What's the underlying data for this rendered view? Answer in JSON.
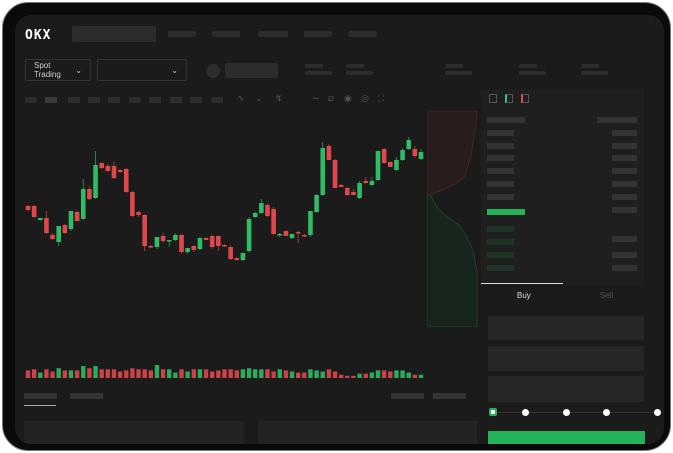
{
  "header": {
    "logo": "OKX"
  },
  "toolbar": {
    "market_select": "Spot Trading",
    "pair_select": ""
  },
  "order_form": {
    "tabs": [
      {
        "label": "Buy",
        "active": true
      },
      {
        "label": "Sell",
        "active": false
      }
    ],
    "slider_percent": 0,
    "slider_stops": [
      0,
      25,
      50,
      75,
      100
    ]
  },
  "colors": {
    "up": "#2ebd65",
    "down": "#e0474c",
    "background": "#1b1b1b",
    "accent_buy": "#25b35a"
  },
  "icons": [
    "chevron-down-icon",
    "indicator-icon",
    "draw-icon",
    "ruler-icon",
    "camera-icon",
    "settings-icon",
    "fullscreen-icon",
    "orderbook-both-icon",
    "orderbook-bids-icon",
    "orderbook-asks-icon"
  ],
  "chart_data": {
    "type": "candlestick",
    "fields": [
      "open",
      "high",
      "low",
      "close",
      "volume"
    ],
    "candles": [
      [
        67,
        68,
        62,
        63,
        7
      ],
      [
        67,
        68,
        55,
        56,
        8
      ],
      [
        53,
        55,
        52,
        55,
        5
      ],
      [
        55,
        62,
        39,
        40,
        8
      ],
      [
        38,
        40,
        33,
        34,
        6
      ],
      [
        31,
        47,
        27,
        47,
        9
      ],
      [
        48,
        49,
        39,
        40,
        7
      ],
      [
        44,
        62,
        42,
        62,
        7
      ],
      [
        61,
        62,
        51,
        52,
        7
      ],
      [
        54,
        94,
        53,
        84,
        11
      ],
      [
        84,
        87,
        73,
        74,
        9
      ],
      [
        75,
        122,
        74,
        108,
        11
      ],
      [
        110,
        111,
        104,
        105,
        8
      ],
      [
        107,
        109,
        101,
        102,
        8
      ],
      [
        107,
        112,
        94,
        95,
        8
      ],
      [
        103,
        104,
        100,
        101,
        6
      ],
      [
        104,
        105,
        80,
        81,
        7
      ],
      [
        81,
        82,
        56,
        57,
        9
      ],
      [
        61,
        62,
        56,
        58,
        8
      ],
      [
        58,
        59,
        22,
        27,
        8
      ],
      [
        27,
        28,
        25,
        26,
        7
      ],
      [
        26,
        36,
        24,
        36,
        12
      ],
      [
        37,
        40,
        30,
        32,
        8
      ],
      [
        32,
        33,
        26,
        33,
        8
      ],
      [
        33,
        40,
        32,
        38,
        5
      ],
      [
        38,
        39,
        19,
        21,
        8
      ],
      [
        21,
        25,
        19,
        25,
        6
      ],
      [
        27,
        28,
        21,
        23,
        8
      ],
      [
        24,
        36,
        23,
        35,
        8
      ],
      [
        35,
        36,
        33,
        33,
        8
      ],
      [
        37,
        38,
        24,
        26,
        6
      ],
      [
        37,
        38,
        22,
        27,
        7
      ],
      [
        28,
        29,
        26,
        27,
        8
      ],
      [
        26,
        28,
        13,
        14,
        8
      ],
      [
        15,
        16,
        12,
        13,
        7
      ],
      [
        13,
        20,
        12,
        20,
        8
      ],
      [
        22,
        56,
        20,
        54,
        9
      ],
      [
        56,
        61,
        55,
        60,
        8
      ],
      [
        60,
        74,
        59,
        70,
        8
      ],
      [
        68,
        70,
        56,
        57,
        8
      ],
      [
        64,
        66,
        38,
        39,
        6
      ],
      [
        38,
        40,
        36,
        39,
        8
      ],
      [
        42,
        43,
        37,
        37,
        7
      ],
      [
        35,
        39,
        34,
        39,
        6
      ],
      [
        41,
        42,
        30,
        40,
        5
      ],
      [
        38,
        39,
        36,
        37,
        5
      ],
      [
        38,
        62,
        36,
        62,
        8
      ],
      [
        61,
        79,
        60,
        78,
        7
      ],
      [
        78,
        131,
        77,
        125,
        6
      ],
      [
        127,
        129,
        113,
        113,
        8
      ],
      [
        113,
        114,
        85,
        85,
        6
      ],
      [
        88,
        89,
        86,
        86,
        3
      ],
      [
        85,
        86,
        77,
        78,
        2
      ],
      [
        81,
        84,
        78,
        78,
        2
      ],
      [
        75,
        92,
        74,
        90,
        4
      ],
      [
        92,
        96,
        89,
        90,
        4
      ],
      [
        88,
        96,
        87,
        92,
        5
      ],
      [
        93,
        122,
        92,
        122,
        7
      ],
      [
        124,
        125,
        109,
        110,
        7
      ],
      [
        111,
        112,
        106,
        106,
        6
      ],
      [
        103,
        116,
        102,
        113,
        7
      ],
      [
        113,
        125,
        112,
        123,
        7
      ],
      [
        124,
        136,
        123,
        133,
        5
      ],
      [
        124,
        127,
        115,
        117,
        3
      ],
      [
        114,
        124,
        113,
        121,
        3
      ]
    ]
  }
}
